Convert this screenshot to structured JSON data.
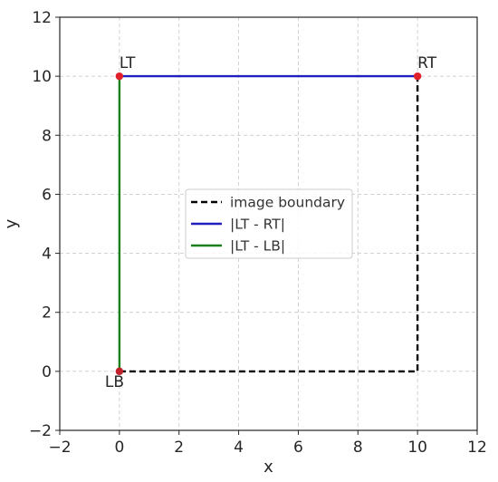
{
  "chart_data": {
    "type": "line",
    "xlabel": "x",
    "ylabel": "y",
    "xlim": [
      -2,
      12
    ],
    "ylim": [
      -2,
      12
    ],
    "xticks": [
      -2,
      0,
      2,
      4,
      6,
      8,
      10,
      12
    ],
    "yticks": [
      -2,
      0,
      2,
      4,
      6,
      8,
      10,
      12
    ],
    "xtick_labels": [
      "−2",
      "0",
      "2",
      "4",
      "6",
      "8",
      "10",
      "12"
    ],
    "ytick_labels": [
      "−2",
      "0",
      "2",
      "4",
      "6",
      "8",
      "10",
      "12"
    ],
    "grid": true,
    "legend_position": "center",
    "series": [
      {
        "name": "image boundary",
        "style": "dashed",
        "color": "#000000",
        "points": [
          [
            0,
            0
          ],
          [
            10,
            0
          ],
          [
            10,
            10
          ]
        ]
      },
      {
        "name": "|LT - RT|",
        "style": "solid",
        "color": "#1f1fbf",
        "points": [
          [
            0,
            10
          ],
          [
            10,
            10
          ]
        ]
      },
      {
        "name": "|LT - LB|",
        "style": "solid",
        "color": "#1a801a",
        "points": [
          [
            0,
            10
          ],
          [
            0,
            0
          ]
        ]
      }
    ],
    "markers": [
      {
        "label": "LT",
        "x": 0,
        "y": 10,
        "color": "#e0202a"
      },
      {
        "label": "RT",
        "x": 10,
        "y": 10,
        "color": "#e0202a"
      },
      {
        "label": "LB",
        "x": 0,
        "y": 0,
        "color": "#c0202a"
      }
    ]
  }
}
